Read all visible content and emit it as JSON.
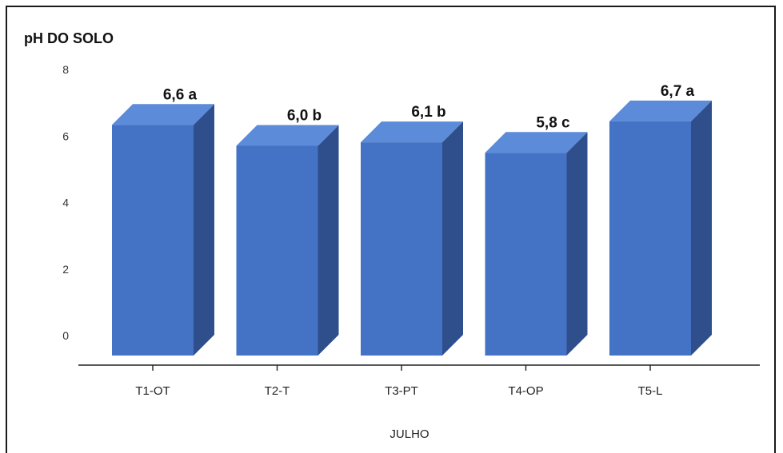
{
  "chart_data": {
    "type": "bar",
    "ylabel": "pH DO SOLO",
    "xlabel": "JULHO",
    "categories": [
      "T1-OT",
      "T2-T",
      "T3-PT",
      "T4-OP",
      "T5-L"
    ],
    "values": [
      6.6,
      6.0,
      6.1,
      5.8,
      6.7
    ],
    "data_labels": [
      "6,6 a",
      "6,0 b",
      "6,1 b",
      "5,8 c",
      "6,7 a"
    ],
    "y_ticks": [
      "0",
      "2",
      "4",
      "6",
      "8"
    ],
    "ylim": [
      0,
      8
    ],
    "grid": false,
    "legend": "none",
    "colors": {
      "bar_front": "#4472C4",
      "bar_top": "#5B8BD9",
      "bar_side": "#2F4F8C",
      "axis": "#222222"
    }
  }
}
